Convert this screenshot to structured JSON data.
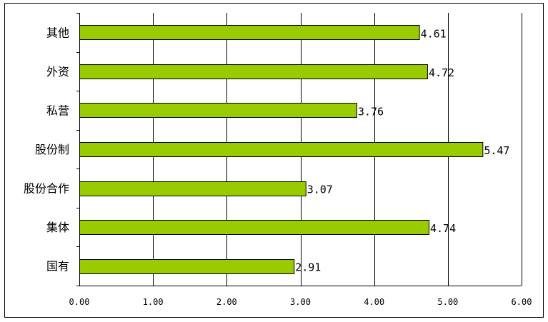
{
  "chart_data": {
    "type": "bar",
    "orientation": "horizontal",
    "categories": [
      "其他",
      "外资",
      "私营",
      "股份制",
      "股份合作",
      "集体",
      "国有"
    ],
    "values": [
      4.61,
      4.72,
      3.76,
      5.47,
      3.07,
      4.74,
      2.91
    ],
    "value_labels": [
      "4.61",
      "4.72",
      "3.76",
      "5.47",
      "3.07",
      "4.74",
      "2.91"
    ],
    "xlim": [
      0,
      6
    ],
    "x_ticks": [
      0,
      1,
      2,
      3,
      4,
      5,
      6
    ],
    "x_tick_labels": [
      "0.00",
      "1.00",
      "2.00",
      "3.00",
      "4.00",
      "5.00",
      "6.00"
    ],
    "title": "",
    "xlabel": "",
    "ylabel": "",
    "grid": "vertical",
    "legend": "none",
    "bar_color": "#99cc00"
  }
}
